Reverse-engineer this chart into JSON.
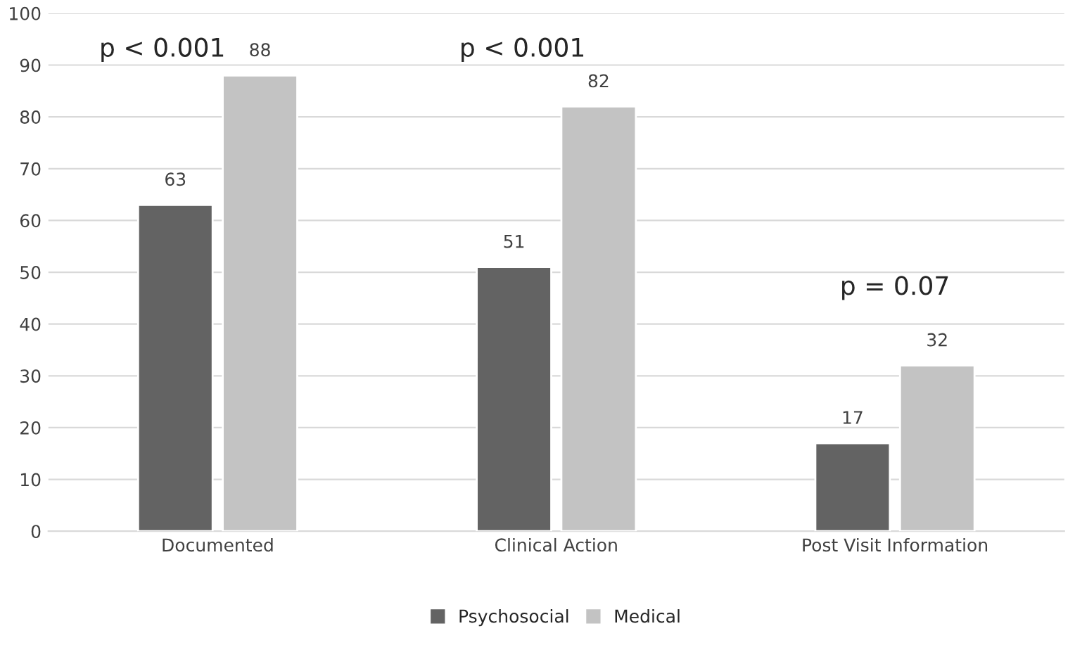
{
  "chart_data": {
    "type": "bar",
    "categories": [
      "Documented",
      "Clinical Action",
      "Post Visit Information"
    ],
    "series": [
      {
        "name": "Psychosocial",
        "color": "#636363",
        "values": [
          63,
          51,
          17
        ]
      },
      {
        "name": "Medical",
        "color": "#c3c3c3",
        "values": [
          88,
          82,
          32
        ]
      }
    ],
    "ylim": [
      0,
      100
    ],
    "yticks": [
      0,
      10,
      20,
      30,
      40,
      50,
      60,
      70,
      80,
      90,
      100
    ],
    "grid": "y",
    "legend": "bottom",
    "data_labels": true,
    "annotations": [
      "p < 0.001",
      "p < 0.001",
      "p = 0.07"
    ]
  }
}
